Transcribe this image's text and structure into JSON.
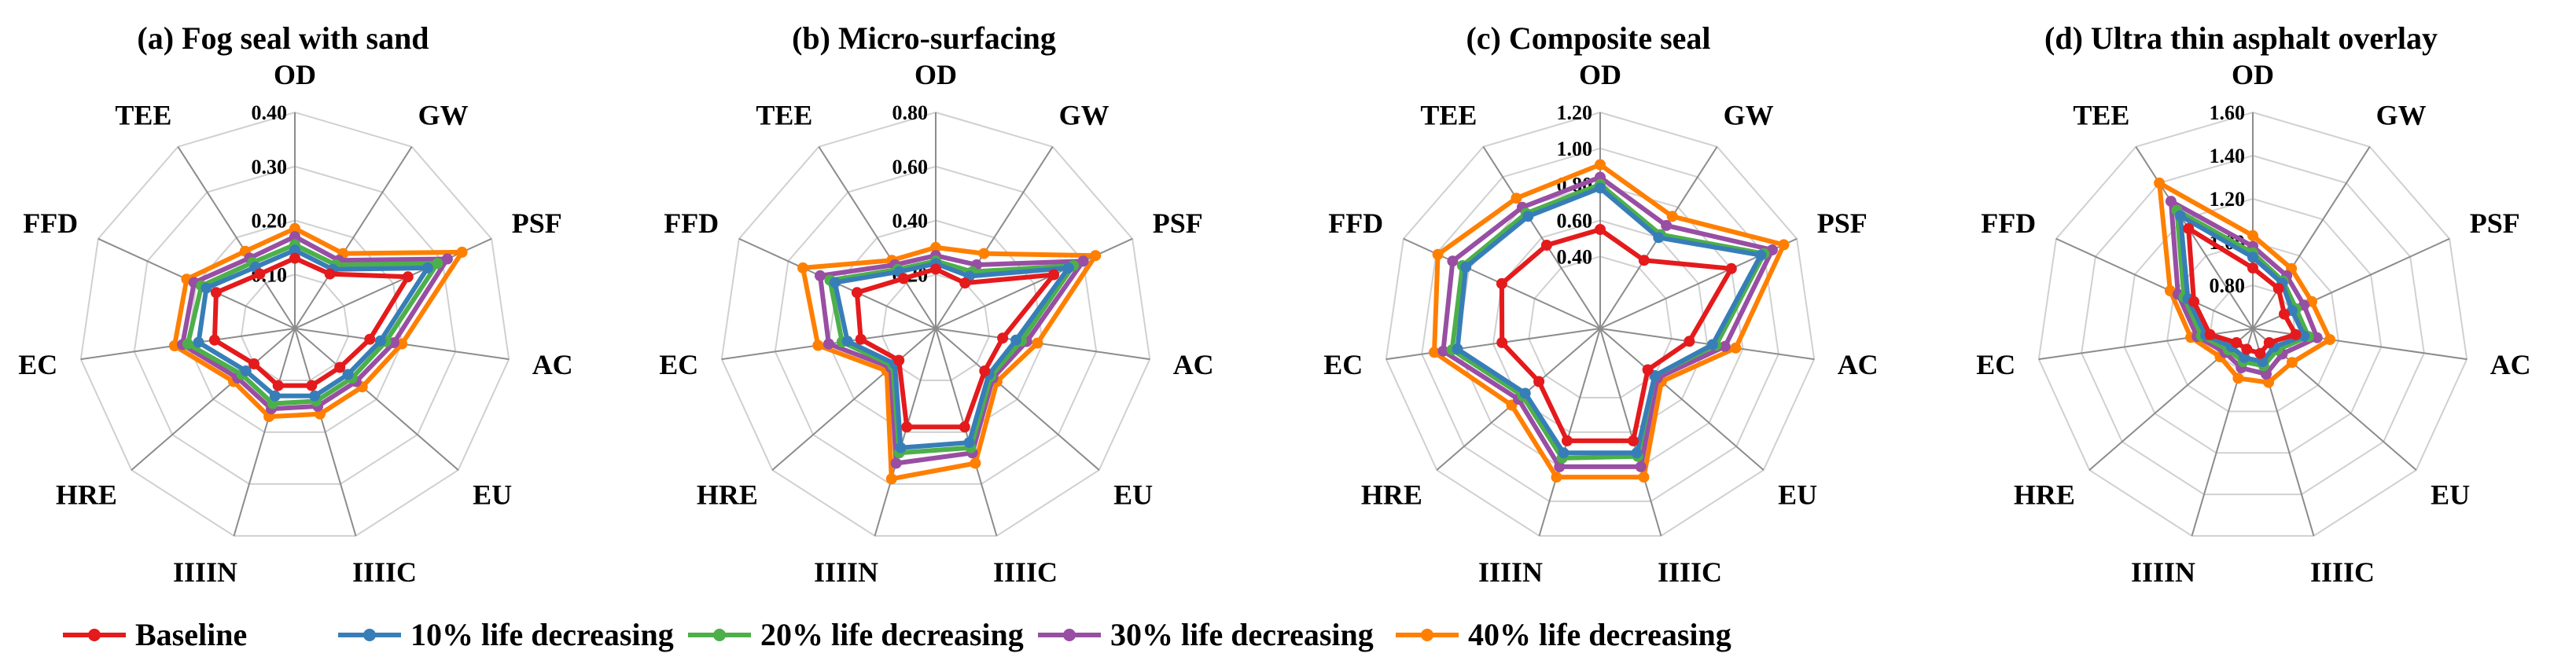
{
  "figure": {
    "legend": [
      {
        "name": "Baseline",
        "color": "#e41a1c"
      },
      {
        "name": "10% life decreasing",
        "color": "#377eb8"
      },
      {
        "name": "20% life decreasing",
        "color": "#4daf4a"
      },
      {
        "name": "30% life decreasing",
        "color": "#984ea3"
      },
      {
        "name": "40% life decreasing",
        "color": "#ff7f00"
      }
    ]
  },
  "chart_data": [
    {
      "type": "radar",
      "title": "(a) Fog seal with sand",
      "axes": [
        "OD",
        "GW",
        "PSF",
        "AC",
        "EU",
        "IIIIC",
        "IIIIN",
        "HRE",
        "EC",
        "FFD",
        "TEE"
      ],
      "rmin": 0.0,
      "rmax": 0.4,
      "ticks": [
        0.1,
        0.2,
        0.3,
        0.4
      ],
      "tick_labels": [
        "0.10",
        "0.20",
        "0.30",
        "0.40"
      ],
      "series": [
        {
          "name": "Baseline",
          "color": "#e41a1c",
          "values": [
            0.13,
            0.12,
            0.23,
            0.14,
            0.11,
            0.11,
            0.11,
            0.1,
            0.15,
            0.16,
            0.12
          ]
        },
        {
          "name": "10% life decreasing",
          "color": "#377eb8",
          "values": [
            0.145,
            0.13,
            0.27,
            0.16,
            0.13,
            0.13,
            0.13,
            0.12,
            0.18,
            0.18,
            0.135
          ]
        },
        {
          "name": "20% life decreasing",
          "color": "#4daf4a",
          "values": [
            0.155,
            0.14,
            0.29,
            0.17,
            0.14,
            0.14,
            0.145,
            0.13,
            0.2,
            0.19,
            0.145
          ]
        },
        {
          "name": "30% life decreasing",
          "color": "#984ea3",
          "values": [
            0.17,
            0.15,
            0.31,
            0.185,
            0.15,
            0.15,
            0.155,
            0.14,
            0.21,
            0.205,
            0.155
          ]
        },
        {
          "name": "40% life decreasing",
          "color": "#ff7f00",
          "values": [
            0.185,
            0.165,
            0.34,
            0.2,
            0.165,
            0.165,
            0.17,
            0.15,
            0.225,
            0.22,
            0.17
          ]
        }
      ]
    },
    {
      "type": "radar",
      "title": "(b) Micro-surfacing",
      "axes": [
        "OD",
        "GW",
        "PSF",
        "AC",
        "EU",
        "IIIIC",
        "IIIIN",
        "HRE",
        "EC",
        "FFD",
        "TEE"
      ],
      "rmin": 0.0,
      "rmax": 0.8,
      "ticks": [
        0.2,
        0.4,
        0.6,
        0.8
      ],
      "tick_labels": [
        "0.20",
        "0.40",
        "0.60",
        "0.80"
      ],
      "series": [
        {
          "name": "Baseline",
          "color": "#e41a1c",
          "values": [
            0.22,
            0.2,
            0.48,
            0.25,
            0.24,
            0.38,
            0.38,
            0.18,
            0.28,
            0.32,
            0.22
          ]
        },
        {
          "name": "10% life decreasing",
          "color": "#377eb8",
          "values": [
            0.24,
            0.23,
            0.54,
            0.3,
            0.26,
            0.44,
            0.46,
            0.2,
            0.33,
            0.41,
            0.25
          ]
        },
        {
          "name": "20% life decreasing",
          "color": "#4daf4a",
          "values": [
            0.25,
            0.25,
            0.56,
            0.32,
            0.27,
            0.46,
            0.48,
            0.21,
            0.35,
            0.43,
            0.26
          ]
        },
        {
          "name": "30% life decreasing",
          "color": "#984ea3",
          "values": [
            0.27,
            0.28,
            0.6,
            0.34,
            0.28,
            0.48,
            0.52,
            0.22,
            0.4,
            0.47,
            0.28
          ]
        },
        {
          "name": "40% life decreasing",
          "color": "#ff7f00",
          "values": [
            0.3,
            0.33,
            0.65,
            0.38,
            0.3,
            0.52,
            0.58,
            0.24,
            0.44,
            0.54,
            0.3
          ]
        }
      ]
    },
    {
      "type": "radar",
      "title": "(c) Composite seal",
      "axes": [
        "OD",
        "GW",
        "PSF",
        "AC",
        "EU",
        "IIIIC",
        "IIIIN",
        "HRE",
        "EC",
        "FFD",
        "TEE"
      ],
      "rmin": 0.0,
      "rmax": 1.2,
      "ticks": [
        0.4,
        0.6,
        0.8,
        1.0,
        1.2
      ],
      "tick_labels": [
        "0.40",
        "0.60",
        "0.80",
        "1.00",
        "1.20"
      ],
      "series": [
        {
          "name": "Baseline",
          "color": "#e41a1c",
          "values": [
            0.55,
            0.45,
            0.8,
            0.5,
            0.35,
            0.65,
            0.65,
            0.45,
            0.55,
            0.6,
            0.55
          ]
        },
        {
          "name": "10% life decreasing",
          "color": "#377eb8",
          "values": [
            0.78,
            0.6,
            0.98,
            0.63,
            0.4,
            0.72,
            0.72,
            0.55,
            0.8,
            0.82,
            0.74
          ]
        },
        {
          "name": "20% life decreasing",
          "color": "#4daf4a",
          "values": [
            0.8,
            0.62,
            1.0,
            0.65,
            0.4,
            0.74,
            0.75,
            0.57,
            0.83,
            0.84,
            0.76
          ]
        },
        {
          "name": "30% life decreasing",
          "color": "#984ea3",
          "values": [
            0.84,
            0.68,
            1.05,
            0.7,
            0.42,
            0.8,
            0.8,
            0.6,
            0.88,
            0.9,
            0.8
          ]
        },
        {
          "name": "40% life decreasing",
          "color": "#ff7f00",
          "values": [
            0.91,
            0.74,
            1.12,
            0.76,
            0.45,
            0.86,
            0.86,
            0.65,
            0.93,
            0.99,
            0.86
          ]
        }
      ]
    },
    {
      "type": "radar",
      "title": "(d) Ultra thin asphalt overlay",
      "axes": [
        "OD",
        "GW",
        "PSF",
        "AC",
        "EU",
        "IIIIC",
        "IIIIN",
        "HRE",
        "EC",
        "FFD",
        "TEE"
      ],
      "rmin": 0.6,
      "rmax": 1.6,
      "ticks": [
        0.8,
        1.0,
        1.2,
        1.4,
        1.6
      ],
      "tick_labels": [
        "0.80",
        "1.00",
        "1.20",
        "1.40",
        "1.60"
      ],
      "series": [
        {
          "name": "Baseline",
          "color": "#e41a1c",
          "values": [
            0.88,
            0.82,
            0.76,
            0.8,
            0.7,
            0.72,
            0.7,
            0.7,
            0.8,
            0.9,
            1.15
          ]
        },
        {
          "name": "10% life decreasing",
          "color": "#377eb8",
          "values": [
            0.93,
            0.85,
            0.8,
            0.84,
            0.73,
            0.76,
            0.74,
            0.73,
            0.82,
            0.93,
            1.22
          ]
        },
        {
          "name": "20% life decreasing",
          "color": "#4daf4a",
          "values": [
            0.95,
            0.86,
            0.82,
            0.86,
            0.75,
            0.78,
            0.76,
            0.75,
            0.84,
            0.95,
            1.25
          ]
        },
        {
          "name": "30% life decreasing",
          "color": "#984ea3",
          "values": [
            0.98,
            0.89,
            0.86,
            0.9,
            0.78,
            0.82,
            0.79,
            0.77,
            0.86,
            0.98,
            1.3
          ]
        },
        {
          "name": "40% life decreasing",
          "color": "#ff7f00",
          "values": [
            1.03,
            0.93,
            0.9,
            0.96,
            0.84,
            0.86,
            0.84,
            0.8,
            0.89,
            1.02,
            1.4
          ]
        }
      ]
    }
  ]
}
